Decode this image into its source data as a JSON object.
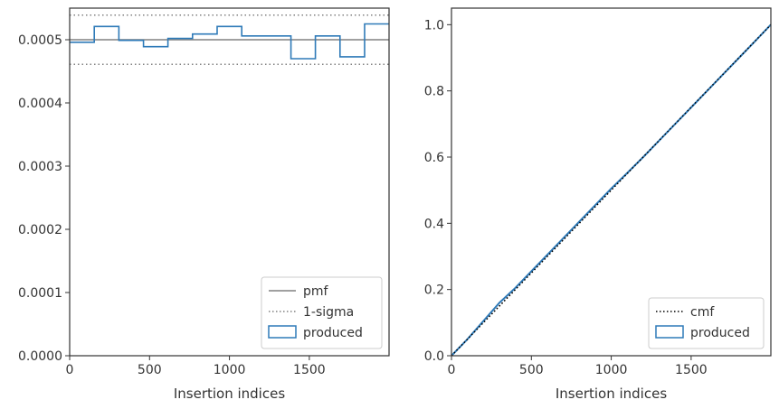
{
  "chart_data": [
    {
      "type": "step",
      "xlabel": "Insertion indices",
      "ylabel": "",
      "xlim": [
        0,
        1999
      ],
      "ylim": [
        0,
        0.00055
      ],
      "xticks": [
        0,
        500,
        1000,
        1500
      ],
      "yticks": [
        0,
        0.0001,
        0.0002,
        0.0003,
        0.0004,
        0.0005
      ],
      "ytick_labels": [
        "0.0000",
        "0.0001",
        "0.0002",
        "0.0003",
        "0.0004",
        "0.0005"
      ],
      "grid": false,
      "legend_position": "lower-right",
      "reference_lines": [
        {
          "name": "pmf",
          "y": 0.0005,
          "style": "solid",
          "color": "#808080"
        },
        {
          "name": "1-sigma",
          "y": 0.000539,
          "style": "dotted",
          "color": "#808080"
        },
        {
          "name": "1-sigma",
          "y": 0.000461,
          "style": "dotted",
          "color": "#808080"
        }
      ],
      "series": [
        {
          "name": "produced",
          "color": "#2e7ab8",
          "bin_edges": [
            0,
            154,
            308,
            462,
            615,
            769,
            923,
            1077,
            1231,
            1385,
            1538,
            1692,
            1846,
            1999
          ],
          "values": [
            0.000496,
            0.000521,
            0.000499,
            0.000489,
            0.000502,
            0.000509,
            0.000521,
            0.000506,
            0.000506,
            0.00047,
            0.000506,
            0.000473,
            0.000525
          ]
        }
      ],
      "legend": [
        {
          "label": "pmf",
          "style": "solid-line"
        },
        {
          "label": "1-sigma",
          "style": "dotted-line"
        },
        {
          "label": "produced",
          "style": "box"
        }
      ]
    },
    {
      "type": "line",
      "xlabel": "Insertion indices",
      "ylabel": "",
      "xlim": [
        0,
        1999
      ],
      "ylim": [
        0,
        1.05
      ],
      "xticks": [
        0,
        500,
        1000,
        1500
      ],
      "yticks": [
        0,
        0.2,
        0.4,
        0.6,
        0.8,
        1.0
      ],
      "ytick_labels": [
        "0.0",
        "0.2",
        "0.4",
        "0.6",
        "0.8",
        "1.0"
      ],
      "grid": false,
      "legend_position": "lower-right",
      "series": [
        {
          "name": "cmf",
          "style": "dotted",
          "color": "#000000",
          "x": [
            0,
            1999
          ],
          "y": [
            0,
            1.0
          ]
        },
        {
          "name": "produced",
          "color": "#2e7ab8",
          "x": [
            0,
            100,
            200,
            300,
            400,
            500,
            600,
            700,
            800,
            900,
            1000,
            1100,
            1200,
            1300,
            1400,
            1500,
            1600,
            1700,
            1800,
            1900,
            1999
          ],
          "y": [
            0,
            0.05,
            0.105,
            0.16,
            0.205,
            0.255,
            0.305,
            0.355,
            0.405,
            0.455,
            0.505,
            0.552,
            0.6,
            0.65,
            0.7,
            0.75,
            0.8,
            0.85,
            0.9,
            0.95,
            1.0
          ]
        }
      ],
      "legend": [
        {
          "label": "cmf",
          "style": "dotted-line"
        },
        {
          "label": "produced",
          "style": "box"
        }
      ]
    }
  ]
}
